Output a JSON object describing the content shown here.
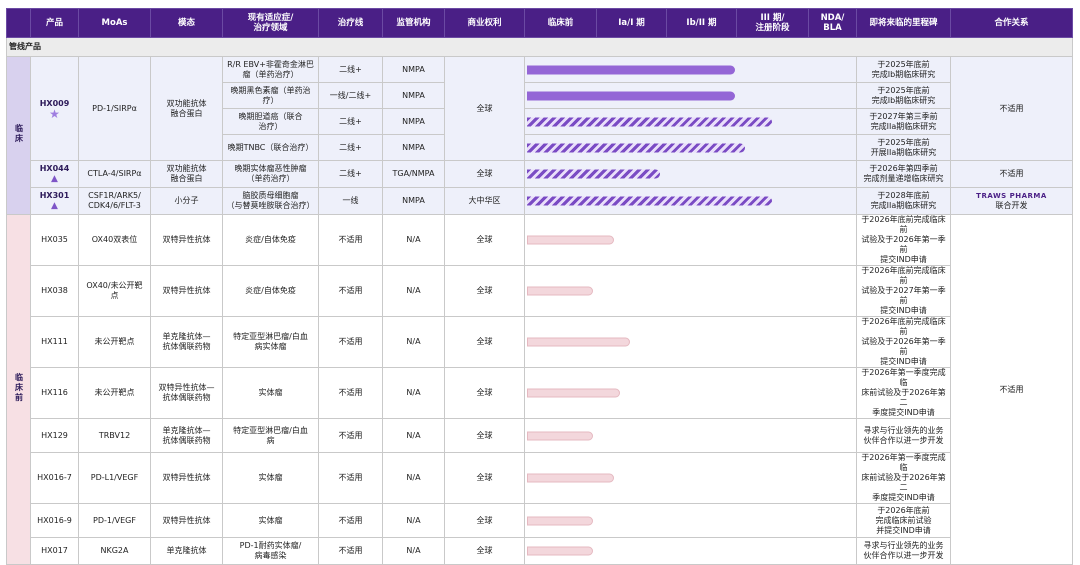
{
  "headers": [
    "",
    "产品",
    "MoAs",
    "模态",
    "现有适应症/\n治疗领域",
    "治疗线",
    "监管机构",
    "商业权利",
    "临床前",
    "Ia/I 期",
    "Ib/II 期",
    "III 期/\n注册阶段",
    "NDA/\nBLA",
    "即将来临的里程碑",
    "合作关系"
  ],
  "section_title": "管线产品",
  "cat_clinical": "临床",
  "cat_preclinical": "临床前",
  "clinical": {
    "hx009": {
      "code": "HX009",
      "moa": "PD-1/SIRPα",
      "modality": "双功能抗体\n融合蛋白",
      "rights": "全球",
      "partner": "不适用",
      "rows": [
        {
          "ind": "R/R EBV+非霍奇金淋巴\n瘤（单药治疗）",
          "line": "二线+",
          "reg": "NMPA",
          "ms": "于2025年底前\n完成Ib期临床研究",
          "bar": {
            "type": "solid",
            "stage": 1.95
          }
        },
        {
          "ind": "晚期黑色素瘤（单药治\n疗）",
          "line": "一线/二线+",
          "reg": "NMPA",
          "ms": "于2025年底前\n完成Ib期临床研究",
          "bar": {
            "type": "solid",
            "stage": 1.95
          }
        },
        {
          "ind": "晚期胆道癌（联合\n治疗）",
          "line": "二线+",
          "reg": "NMPA",
          "ms": "于2027年第三季前\n完成IIa期临床研究",
          "bar": {
            "type": "hatch",
            "stage": 2.3
          }
        },
        {
          "ind": "晚期TNBC（联合治疗）",
          "line": "二线+",
          "reg": "NMPA",
          "ms": "于2025年底前\n开展IIa期临床研究",
          "bar": {
            "type": "hatch",
            "stage": 2.05
          }
        }
      ]
    },
    "hx044": {
      "code": "HX044",
      "moa": "CTLA-4/SIRPα",
      "modality": "双功能抗体\n融合蛋白",
      "ind": "晚期实体瘤恶性肿瘤\n（单药治疗）",
      "line": "二线+",
      "reg": "TGA/NMPA",
      "rights": "全球",
      "ms": "于2026年第四季前\n完成剂量递增临床研究",
      "partner": "不适用",
      "bar": {
        "type": "hatch",
        "stage": 1.25
      }
    },
    "hx301": {
      "code": "HX301",
      "moa": "CSF1R/ARK5/\nCDK4/6/FLT-3",
      "modality": "小分子",
      "ind": "脑胶质母细胞瘤\n（与替莫唑胺联合治疗）",
      "line": "一线",
      "reg": "NMPA",
      "rights": "大中华区",
      "ms": "于2028年底前\n完成IIa期临床研究",
      "partner_logo": "TRAWS PHARMA",
      "partner": "联合开发",
      "bar": {
        "type": "hatch",
        "stage": 2.3
      }
    }
  },
  "preclinical": [
    {
      "code": "HX035",
      "moa": "OX40双表位",
      "modality": "双特异性抗体",
      "ind": "炎症/自体免疫",
      "line": "不适用",
      "reg": "N/A",
      "rights": "全球",
      "ms": "于2026年底前完成临床前\n试验及于2026年第一季前\n提交IND申请",
      "stage": 0.8
    },
    {
      "code": "HX038",
      "moa": "OX40/未公开靶\n点",
      "modality": "双特异性抗体",
      "ind": "炎症/自体免疫",
      "line": "不适用",
      "reg": "N/A",
      "rights": "全球",
      "ms": "于2026年底前完成临床前\n试验及于2027年第一季前\n提交IND申请",
      "stage": 0.6
    },
    {
      "code": "HX111",
      "moa": "未公开靶点",
      "modality": "单克隆抗体—\n抗体偶联药物",
      "ind": "特定亚型淋巴瘤/白血\n病实体瘤",
      "line": "不适用",
      "reg": "N/A",
      "rights": "全球",
      "ms": "于2026年底前完成临床前\n试验及于2026年第一季前\n提交IND申请",
      "stage": 0.95
    },
    {
      "code": "HX116",
      "moa": "未公开靶点",
      "modality": "双特异性抗体—\n抗体偶联药物",
      "ind": "实体瘤",
      "line": "不适用",
      "reg": "N/A",
      "rights": "全球",
      "ms": "于2026年第一季度完成临\n床前试验及于2026年第二\n季度提交IND申请",
      "stage": 0.85
    },
    {
      "code": "HX129",
      "moa": "TRBV12",
      "modality": "单克隆抗体—\n抗体偶联药物",
      "ind": "特定亚型淋巴瘤/白血\n病",
      "line": "不适用",
      "reg": "N/A",
      "rights": "全球",
      "ms": "寻求与行业领先的业务\n伙伴合作以进一步开发",
      "stage": 0.6
    },
    {
      "code": "HX016-7",
      "moa": "PD-L1/VEGF",
      "modality": "双特异性抗体",
      "ind": "实体瘤",
      "line": "不适用",
      "reg": "N/A",
      "rights": "全球",
      "ms": "于2026年第一季度完成临\n床前试验及于2026年第二\n季度提交IND申请",
      "stage": 0.8
    },
    {
      "code": "HX016-9",
      "moa": "PD-1/VEGF",
      "modality": "双特异性抗体",
      "ind": "实体瘤",
      "line": "不适用",
      "reg": "N/A",
      "rights": "全球",
      "ms": "于2026年底前\n完成临床前试验\n并提交IND申请",
      "stage": 0.6
    },
    {
      "code": "HX017",
      "moa": "NKG2A",
      "modality": "单克隆抗体",
      "ind": "PD-1耐药实体瘤/\n病毒感染",
      "line": "不适用",
      "reg": "N/A",
      "rights": "全球",
      "ms": "寻求与行业领先的业务\n伙伴合作以进一步开发",
      "stage": 0.6
    }
  ],
  "pre_partner": "不适用",
  "colors": {
    "header": "#4a1f86",
    "bar_solid": "#9466d6",
    "bar_pink": "#f3d7dc",
    "cat_clin": "#d8d1ee",
    "cat_pre": "#f7e0e4"
  },
  "icons": {
    "hx009": "star-icon",
    "hx044": "triangle-icon",
    "hx301": "triangle-icon"
  }
}
